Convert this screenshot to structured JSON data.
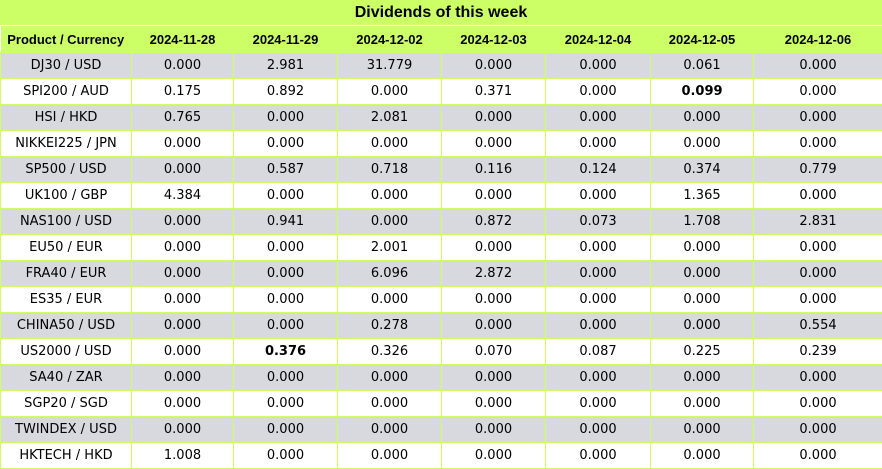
{
  "title": "Dividends of this week",
  "columns": [
    "Product / Currency",
    "2024-11-28",
    "2024-11-29",
    "2024-12-02",
    "2024-12-03",
    "2024-12-04",
    "2024-12-05",
    "2024-12-06"
  ],
  "rows": [
    {
      "product": "DJ30 / USD",
      "values": [
        "0.000",
        "2.981",
        "31.779",
        "0.000",
        "0.000",
        "0.061",
        "0.000"
      ],
      "bold": []
    },
    {
      "product": "SPI200 / AUD",
      "values": [
        "0.175",
        "0.892",
        "0.000",
        "0.371",
        "0.000",
        "0.099",
        "0.000"
      ],
      "bold": [
        5
      ]
    },
    {
      "product": "HSI / HKD",
      "values": [
        "0.765",
        "0.000",
        "2.081",
        "0.000",
        "0.000",
        "0.000",
        "0.000"
      ],
      "bold": []
    },
    {
      "product": "NIKKEI225 / JPN",
      "values": [
        "0.000",
        "0.000",
        "0.000",
        "0.000",
        "0.000",
        "0.000",
        "0.000"
      ],
      "bold": []
    },
    {
      "product": "SP500 / USD",
      "values": [
        "0.000",
        "0.587",
        "0.718",
        "0.116",
        "0.124",
        "0.374",
        "0.779"
      ],
      "bold": []
    },
    {
      "product": "UK100 / GBP",
      "values": [
        "4.384",
        "0.000",
        "0.000",
        "0.000",
        "0.000",
        "1.365",
        "0.000"
      ],
      "bold": []
    },
    {
      "product": "NAS100 / USD",
      "values": [
        "0.000",
        "0.941",
        "0.000",
        "0.872",
        "0.073",
        "1.708",
        "2.831"
      ],
      "bold": []
    },
    {
      "product": "EU50 / EUR",
      "values": [
        "0.000",
        "0.000",
        "2.001",
        "0.000",
        "0.000",
        "0.000",
        "0.000"
      ],
      "bold": []
    },
    {
      "product": "FRA40 / EUR",
      "values": [
        "0.000",
        "0.000",
        "6.096",
        "2.872",
        "0.000",
        "0.000",
        "0.000"
      ],
      "bold": []
    },
    {
      "product": "ES35 / EUR",
      "values": [
        "0.000",
        "0.000",
        "0.000",
        "0.000",
        "0.000",
        "0.000",
        "0.000"
      ],
      "bold": []
    },
    {
      "product": "CHINA50 / USD",
      "values": [
        "0.000",
        "0.000",
        "0.278",
        "0.000",
        "0.000",
        "0.000",
        "0.554"
      ],
      "bold": []
    },
    {
      "product": "US2000 / USD",
      "values": [
        "0.000",
        "0.376",
        "0.326",
        "0.070",
        "0.087",
        "0.225",
        "0.239"
      ],
      "bold": [
        1
      ]
    },
    {
      "product": "SA40 / ZAR",
      "values": [
        "0.000",
        "0.000",
        "0.000",
        "0.000",
        "0.000",
        "0.000",
        "0.000"
      ],
      "bold": []
    },
    {
      "product": "SGP20 / SGD",
      "values": [
        "0.000",
        "0.000",
        "0.000",
        "0.000",
        "0.000",
        "0.000",
        "0.000"
      ],
      "bold": []
    },
    {
      "product": "TWINDEX / USD",
      "values": [
        "0.000",
        "0.000",
        "0.000",
        "0.000",
        "0.000",
        "0.000",
        "0.000"
      ],
      "bold": []
    },
    {
      "product": "HKTECH / HKD",
      "values": [
        "1.008",
        "0.000",
        "0.000",
        "0.000",
        "0.000",
        "0.000",
        "0.000"
      ],
      "bold": []
    }
  ],
  "colors": {
    "header_bg": "#ccff66",
    "odd_row_bg": "#d8d8df",
    "even_row_bg": "#ffffff",
    "grid": "#ccff66"
  }
}
